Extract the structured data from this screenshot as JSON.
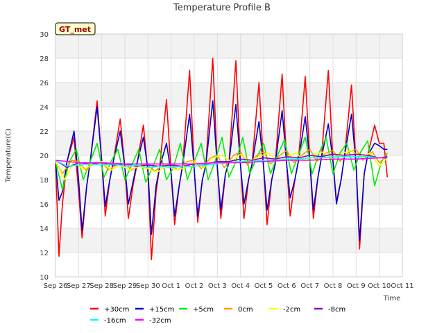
{
  "chart_data": {
    "type": "line",
    "title": "Temperature Profile B",
    "xlabel": "Time",
    "ylabel": "Temperature(C)",
    "ylim": [
      10,
      30
    ],
    "yticks": [
      10,
      12,
      14,
      16,
      18,
      20,
      22,
      24,
      26,
      28,
      30
    ],
    "xlim": [
      0,
      15
    ],
    "xticks": [
      {
        "x": 0,
        "label": "Sep 26"
      },
      {
        "x": 1,
        "label": "Sep 27"
      },
      {
        "x": 2,
        "label": "Sep 28"
      },
      {
        "x": 3,
        "label": "Sep 29"
      },
      {
        "x": 4,
        "label": "Sep 30"
      },
      {
        "x": 5,
        "label": "Oct 1"
      },
      {
        "x": 6,
        "label": "Oct 2"
      },
      {
        "x": 7,
        "label": "Oct 3"
      },
      {
        "x": 8,
        "label": "Oct 4"
      },
      {
        "x": 9,
        "label": "Oct 5"
      },
      {
        "x": 10,
        "label": "Oct 6"
      },
      {
        "x": 11,
        "label": "Oct 7"
      },
      {
        "x": 12,
        "label": "Oct 8"
      },
      {
        "x": 13,
        "label": "Oct 9"
      },
      {
        "x": 14,
        "label": "Oct 10"
      },
      {
        "x": 15,
        "label": "Oct 11"
      }
    ],
    "grid": true,
    "legend_position": "bottom",
    "annotation": "GT_met",
    "series": [
      {
        "name": "+30cm",
        "color": "#ff0000",
        "x": [
          0.0,
          0.15,
          0.3,
          0.5,
          0.8,
          1.0,
          1.15,
          1.35,
          1.5,
          1.8,
          2.0,
          2.15,
          2.35,
          2.5,
          2.8,
          3.0,
          3.15,
          3.35,
          3.5,
          3.8,
          4.0,
          4.15,
          4.35,
          4.5,
          4.8,
          5.0,
          5.15,
          5.35,
          5.5,
          5.8,
          6.0,
          6.15,
          6.35,
          6.5,
          6.8,
          7.0,
          7.15,
          7.35,
          7.5,
          7.8,
          8.0,
          8.15,
          8.35,
          8.5,
          8.8,
          9.0,
          9.15,
          9.35,
          9.5,
          9.8,
          10.0,
          10.15,
          10.35,
          10.5,
          10.8,
          11.0,
          11.15,
          11.35,
          11.5,
          11.8,
          12.0,
          12.15,
          12.35,
          12.5,
          12.8,
          13.0,
          13.15,
          13.35,
          13.5,
          13.8,
          14.0,
          14.2,
          14.35
        ],
        "y": [
          19.5,
          11.7,
          16.0,
          19.5,
          21.5,
          17.0,
          13.2,
          17.5,
          19.5,
          24.5,
          19.5,
          15.0,
          18.0,
          19.5,
          23.0,
          19.0,
          14.8,
          17.5,
          19.0,
          22.5,
          18.5,
          11.4,
          17.0,
          19.0,
          24.6,
          18.5,
          14.3,
          17.5,
          19.2,
          27.0,
          18.8,
          14.5,
          18.0,
          19.2,
          28.0,
          19.0,
          14.8,
          18.5,
          19.4,
          27.8,
          19.2,
          14.8,
          18.0,
          19.3,
          26.0,
          19.0,
          14.3,
          18.0,
          19.3,
          26.7,
          19.2,
          15.0,
          18.0,
          19.5,
          26.5,
          19.5,
          14.8,
          18.2,
          19.8,
          27.0,
          19.5,
          16.2,
          18.0,
          20.0,
          25.8,
          19.2,
          12.3,
          18.5,
          20.0,
          22.5,
          21.0,
          21.0,
          18.2
        ]
      },
      {
        "name": "+15cm",
        "color": "#0000cc",
        "x": [
          0.0,
          0.15,
          0.3,
          0.5,
          0.8,
          1.0,
          1.15,
          1.35,
          1.5,
          1.8,
          2.0,
          2.15,
          2.35,
          2.5,
          2.8,
          3.0,
          3.15,
          3.35,
          3.5,
          3.8,
          4.0,
          4.15,
          4.35,
          4.5,
          4.8,
          5.0,
          5.15,
          5.35,
          5.5,
          5.8,
          6.0,
          6.15,
          6.35,
          6.5,
          6.8,
          7.0,
          7.15,
          7.35,
          7.5,
          7.8,
          8.0,
          8.15,
          8.35,
          8.5,
          8.8,
          9.0,
          9.15,
          9.35,
          9.5,
          9.8,
          10.0,
          10.15,
          10.35,
          10.5,
          10.8,
          11.0,
          11.15,
          11.35,
          11.5,
          11.8,
          12.0,
          12.15,
          12.35,
          12.5,
          12.8,
          13.0,
          13.15,
          13.35,
          13.5,
          13.8,
          14.0,
          14.2,
          14.35
        ],
        "y": [
          19.5,
          16.3,
          17.0,
          19.5,
          22.0,
          18.0,
          13.8,
          17.5,
          19.5,
          24.0,
          19.5,
          15.8,
          18.0,
          19.5,
          22.0,
          19.0,
          16.0,
          17.8,
          19.2,
          21.5,
          18.8,
          13.5,
          17.5,
          19.0,
          21.0,
          18.5,
          15.0,
          17.5,
          19.2,
          23.4,
          18.8,
          15.0,
          18.0,
          19.2,
          24.5,
          19.0,
          15.5,
          18.5,
          19.4,
          24.2,
          19.2,
          16.0,
          18.0,
          19.3,
          22.8,
          19.0,
          15.5,
          18.0,
          19.3,
          23.7,
          19.2,
          16.5,
          18.0,
          19.5,
          23.2,
          19.5,
          15.5,
          18.2,
          19.8,
          22.6,
          19.5,
          16.0,
          18.0,
          20.0,
          23.4,
          19.2,
          13.0,
          18.5,
          20.0,
          21.0,
          20.8,
          20.5,
          20.5
        ]
      },
      {
        "name": "+5cm",
        "color": "#00ee00",
        "x": [
          0.0,
          0.3,
          0.6,
          0.9,
          1.2,
          1.5,
          1.8,
          2.1,
          2.4,
          2.7,
          3.0,
          3.3,
          3.6,
          3.9,
          4.2,
          4.5,
          4.8,
          5.1,
          5.4,
          5.7,
          6.0,
          6.3,
          6.6,
          6.9,
          7.2,
          7.5,
          7.8,
          8.1,
          8.4,
          8.7,
          9.0,
          9.3,
          9.6,
          9.9,
          10.2,
          10.5,
          10.8,
          11.1,
          11.4,
          11.7,
          12.0,
          12.3,
          12.6,
          12.9,
          13.2,
          13.5,
          13.8,
          14.1,
          14.35
        ],
        "y": [
          19.5,
          17.2,
          19.5,
          20.5,
          18.0,
          19.5,
          21.0,
          18.2,
          19.5,
          20.5,
          18.0,
          19.2,
          20.5,
          17.8,
          19.0,
          20.5,
          18.0,
          19.0,
          21.0,
          18.0,
          19.5,
          21.0,
          18.0,
          19.5,
          21.5,
          18.2,
          19.5,
          21.5,
          18.5,
          19.8,
          21.0,
          18.5,
          20.0,
          21.3,
          18.5,
          20.0,
          21.5,
          18.5,
          20.2,
          21.5,
          18.5,
          20.2,
          21.0,
          18.8,
          20.3,
          21.2,
          17.5,
          19.5,
          20.2
        ]
      },
      {
        "name": "0cm",
        "color": "#ff9900",
        "x": [
          0.0,
          0.3,
          0.7,
          1.0,
          1.3,
          1.7,
          2.0,
          2.3,
          2.7,
          3.0,
          3.3,
          3.7,
          4.0,
          4.3,
          4.7,
          5.0,
          5.3,
          5.7,
          6.0,
          6.3,
          6.7,
          7.0,
          7.3,
          7.7,
          8.0,
          8.3,
          8.7,
          9.0,
          9.3,
          9.7,
          10.0,
          10.3,
          10.7,
          11.0,
          11.3,
          11.7,
          12.0,
          12.3,
          12.7,
          13.0,
          13.3,
          13.7,
          14.0,
          14.35
        ],
        "y": [
          19.5,
          18.5,
          19.6,
          19.5,
          18.8,
          19.4,
          19.4,
          18.8,
          19.3,
          19.3,
          18.8,
          19.2,
          19.2,
          18.7,
          19.3,
          19.2,
          18.8,
          19.5,
          19.6,
          18.9,
          19.8,
          20.0,
          19.0,
          20.0,
          20.3,
          19.2,
          20.0,
          20.3,
          19.3,
          20.0,
          20.4,
          19.4,
          20.1,
          20.5,
          19.5,
          20.2,
          20.4,
          19.5,
          20.3,
          20.5,
          19.6,
          20.3,
          19.4,
          20.0
        ]
      },
      {
        "name": "-2cm",
        "color": "#ffff00",
        "x": [
          0.0,
          0.4,
          0.8,
          1.2,
          1.6,
          2.0,
          2.4,
          2.8,
          3.2,
          3.6,
          4.0,
          4.4,
          4.8,
          5.2,
          5.6,
          6.0,
          6.4,
          6.8,
          7.2,
          7.6,
          8.0,
          8.4,
          8.8,
          9.2,
          9.6,
          10.0,
          10.4,
          10.8,
          11.2,
          11.6,
          12.0,
          12.4,
          12.8,
          13.2,
          13.6,
          14.0,
          14.35
        ],
        "y": [
          19.5,
          18.0,
          19.5,
          18.8,
          19.3,
          19.5,
          18.8,
          19.2,
          18.8,
          19.1,
          18.9,
          18.6,
          19.2,
          18.8,
          19.0,
          19.5,
          19.0,
          19.8,
          20.0,
          19.5,
          20.1,
          19.5,
          19.9,
          20.2,
          19.5,
          19.9,
          20.2,
          19.5,
          20.1,
          20.3,
          19.7,
          20.2,
          20.4,
          19.8,
          20.2,
          19.1,
          19.8
        ]
      },
      {
        "name": "-8cm",
        "color": "#8800cc",
        "x": [
          0.0,
          0.5,
          1.0,
          1.5,
          2.0,
          2.5,
          3.0,
          3.5,
          4.0,
          4.5,
          5.0,
          5.5,
          6.0,
          6.5,
          7.0,
          7.5,
          8.0,
          8.5,
          9.0,
          9.5,
          10.0,
          10.5,
          11.0,
          11.5,
          12.0,
          12.5,
          13.0,
          13.5,
          14.0,
          14.35
        ],
        "y": [
          19.6,
          19.0,
          19.4,
          19.3,
          19.4,
          19.2,
          19.3,
          19.1,
          19.2,
          19.1,
          19.2,
          19.1,
          19.3,
          19.3,
          19.5,
          19.5,
          19.7,
          19.6,
          19.8,
          19.7,
          19.9,
          19.8,
          20.0,
          19.9,
          20.1,
          20.0,
          20.1,
          20.0,
          19.8,
          19.9
        ]
      },
      {
        "name": "-16cm",
        "color": "#00ffff",
        "x": [
          0.0,
          0.5,
          1.0,
          1.5,
          2.0,
          2.5,
          3.0,
          3.5,
          4.0,
          4.5,
          5.0,
          5.5,
          6.0,
          6.5,
          7.0,
          7.5,
          8.0,
          8.5,
          9.0,
          9.5,
          10.0,
          10.5,
          11.0,
          11.5,
          12.0,
          12.5,
          13.0,
          13.5,
          14.0,
          14.35
        ],
        "y": [
          19.6,
          19.1,
          19.2,
          19.3,
          19.2,
          19.3,
          19.1,
          19.2,
          19.0,
          19.1,
          19.0,
          19.1,
          19.1,
          19.2,
          19.3,
          19.4,
          19.5,
          19.5,
          19.6,
          19.6,
          19.7,
          19.7,
          19.8,
          19.8,
          19.9,
          19.9,
          19.9,
          19.9,
          19.8,
          19.8
        ]
      },
      {
        "name": "-32cm",
        "color": "#ff00ff",
        "x": [
          0.0,
          1.0,
          2.0,
          3.0,
          4.0,
          5.0,
          6.0,
          7.0,
          8.0,
          9.0,
          10.0,
          11.0,
          12.0,
          13.0,
          14.0,
          14.35
        ],
        "y": [
          19.6,
          19.4,
          19.4,
          19.3,
          19.3,
          19.3,
          19.3,
          19.4,
          19.4,
          19.5,
          19.6,
          19.6,
          19.7,
          19.7,
          19.8,
          19.8
        ]
      }
    ]
  }
}
